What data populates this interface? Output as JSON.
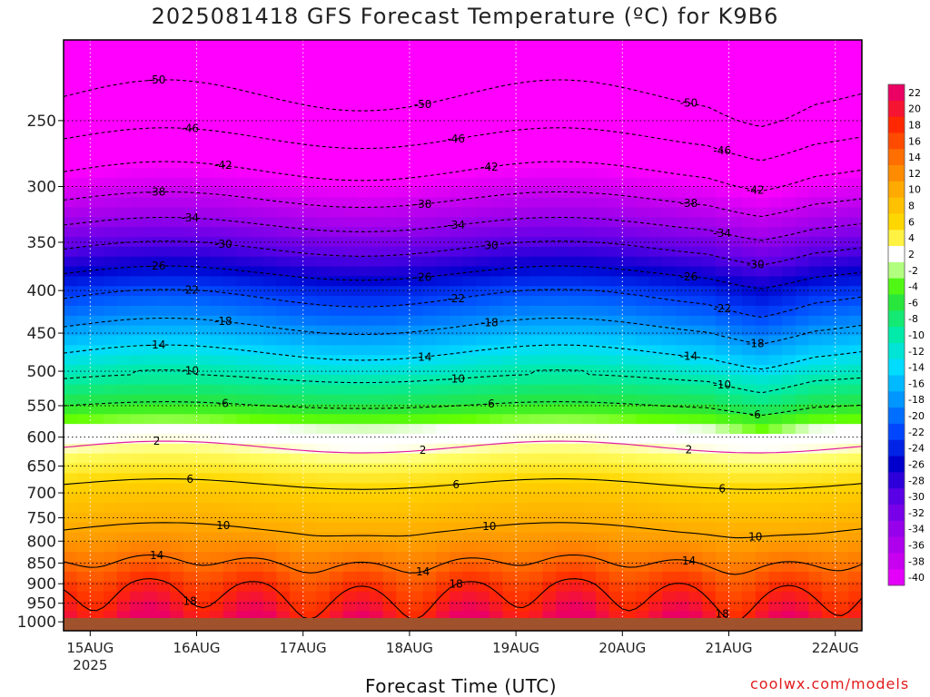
{
  "title": "2025081418 GFS Forecast Temperature (ºC) for K9B6",
  "xlabel": "Forecast Time (UTC)",
  "credit": "coolwx.com/models",
  "chart_data": {
    "type": "heatmap",
    "title": "2025081418 GFS Forecast Temperature (ºC) for K9B6",
    "xlabel": "Forecast Time (UTC)",
    "ylabel": "",
    "x_ticks": [
      {
        "label": "15AUG",
        "sub": "2025",
        "day": 15
      },
      {
        "label": "16AUG",
        "sub": "",
        "day": 16
      },
      {
        "label": "17AUG",
        "sub": "",
        "day": 17
      },
      {
        "label": "18AUG",
        "sub": "",
        "day": 18
      },
      {
        "label": "19AUG",
        "sub": "",
        "day": 19
      },
      {
        "label": "20AUG",
        "sub": "",
        "day": 20
      },
      {
        "label": "21AUG",
        "sub": "",
        "day": 21
      },
      {
        "label": "22AUG",
        "sub": "",
        "day": 22
      }
    ],
    "xlim_days": [
      14.75,
      22.25
    ],
    "y_ticks": [
      250,
      300,
      350,
      400,
      450,
      500,
      550,
      600,
      650,
      700,
      750,
      800,
      850,
      900,
      950,
      1000
    ],
    "ylim_hPa": [
      200,
      1025
    ],
    "y_scale": "log-pressure",
    "surface_hPa": 1012,
    "colorbar_ticks": [
      22,
      20,
      18,
      16,
      14,
      12,
      10,
      8,
      6,
      4,
      2,
      -2,
      -4,
      -6,
      -8,
      -10,
      -12,
      -14,
      -16,
      -18,
      -20,
      -22,
      -24,
      -26,
      -28,
      -30,
      -32,
      -34,
      -36,
      -38,
      -40
    ],
    "colors": {
      "surface": "#a0522d",
      "freezing_line": "#e01ea0",
      "credit": "#e21b1b"
    },
    "profile": {
      "levels_hPa": [
        200,
        250,
        300,
        350,
        400,
        450,
        500,
        550,
        600,
        650,
        700,
        750,
        800,
        850,
        900,
        950,
        1000
      ],
      "temps_C": [
        -54,
        -48,
        -40,
        -31,
        -23,
        -17,
        -11,
        -6,
        1,
        4,
        7,
        9,
        11,
        14,
        17,
        19,
        21
      ]
    },
    "contours": [
      {
        "value": -50,
        "label": "-50"
      },
      {
        "value": -46,
        "label": "-46"
      },
      {
        "value": -42,
        "label": "-42"
      },
      {
        "value": -38,
        "label": "-38"
      },
      {
        "value": -34,
        "label": "-34"
      },
      {
        "value": -30,
        "label": "-30"
      },
      {
        "value": -26,
        "label": "-26"
      },
      {
        "value": -22,
        "label": "-22"
      },
      {
        "value": -18,
        "label": "-18"
      },
      {
        "value": -14,
        "label": "-14"
      },
      {
        "value": -10,
        "label": "-10"
      },
      {
        "value": -6,
        "label": "-6"
      },
      {
        "value": 2,
        "label": "2"
      },
      {
        "value": 6,
        "label": "6"
      },
      {
        "value": 10,
        "label": "10"
      },
      {
        "value": 14,
        "label": "14"
      },
      {
        "value": 18,
        "label": "18"
      }
    ]
  }
}
